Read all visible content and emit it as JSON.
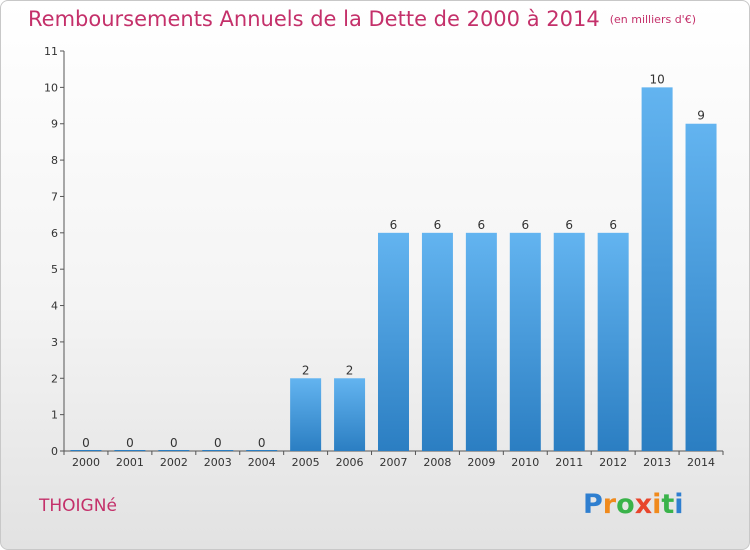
{
  "title": "Remboursements Annuels de la Dette de 2000 à 2014",
  "unit_note": "(en milliers d'€)",
  "commune": "THOIGNé",
  "logo": {
    "letters": [
      "P",
      "r",
      "o",
      "x",
      "i",
      "t",
      "i"
    ],
    "colors": [
      "#2f7fd0",
      "#f08a1c",
      "#3ab34a",
      "#e8452c",
      "#f08a1c",
      "#3ab34a",
      "#2f7fd0"
    ]
  },
  "colors": {
    "title": "#c4306a",
    "bar_light": "#63b4f0",
    "bar_dark": "#2b7ec2"
  },
  "chart_data": {
    "type": "bar",
    "title": "Remboursements Annuels de la Dette de 2000 à 2014",
    "xlabel": "",
    "ylabel": "",
    "categories": [
      "2000",
      "2001",
      "2002",
      "2003",
      "2004",
      "2005",
      "2006",
      "2007",
      "2008",
      "2009",
      "2010",
      "2011",
      "2012",
      "2013",
      "2014"
    ],
    "values": [
      0,
      0,
      0,
      0,
      0,
      2,
      2,
      6,
      6,
      6,
      6,
      6,
      6,
      10,
      9
    ],
    "value_labels": [
      "0",
      "0",
      "0",
      "0",
      "0",
      "2",
      "2",
      "6",
      "6",
      "6",
      "6",
      "6",
      "6",
      "10",
      "9"
    ],
    "yticks": [
      "0",
      "1",
      "2",
      "3",
      "4",
      "5",
      "6",
      "7",
      "8",
      "9",
      "10",
      "11"
    ],
    "ylim": [
      0,
      11
    ],
    "grid": false
  }
}
